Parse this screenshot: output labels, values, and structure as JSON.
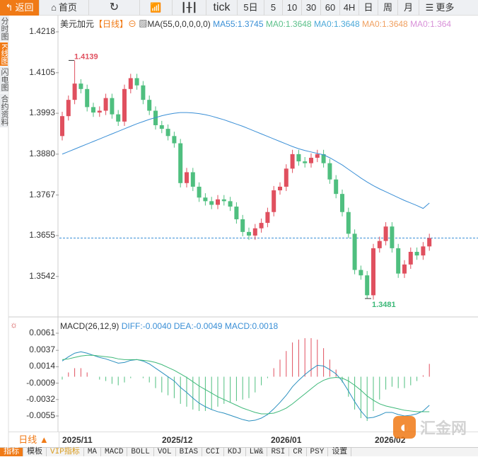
{
  "toolbar": {
    "back": "返回",
    "home": "首页",
    "items": [
      "tick",
      "5日",
      "5",
      "10",
      "30",
      "60",
      "4H",
      "日",
      "周",
      "月"
    ],
    "more": "更多"
  },
  "side_tabs": [
    "分时图",
    "K线图",
    "闪电图",
    "合约资料"
  ],
  "legend": {
    "symbol": "美元加元",
    "period": "【日线】",
    "ma_label": "MA(55,0,0,0,0,0)",
    "ma55": "MA55:1.3745",
    "ma0a": "MA0:1.3648",
    "ma0b": "MA0:1.3648",
    "ma0c": "MA0:1.3648",
    "ma0d": "MA0:1.364"
  },
  "macd_legend": {
    "label": "MACD(26,12,9)",
    "diff": "DIFF:-0.0040",
    "dea": "DEA:-0.0049",
    "macd": "MACD:0.0018"
  },
  "period_select": "日线 ▲",
  "bottom_tabs": [
    "指标",
    "模板",
    "VIP指标",
    "MA",
    "MACD",
    "BOLL",
    "VOL",
    "BIAS",
    "CCI",
    "KDJ",
    "LW&",
    "RSI",
    "CR",
    "PSY",
    "设置"
  ],
  "logo": "汇金网",
  "colors": {
    "up": "#e0505f",
    "down": "#4fbf7f",
    "ma55": "#3a8fd6",
    "diff": "#2a8fbf",
    "dea": "#3cb878",
    "accent": "#f07a16"
  },
  "chart_data": {
    "type": "candlestick",
    "price_ticks": [
      "1.4218",
      "1.4105",
      "1.3993",
      "1.3880",
      "1.3767",
      "1.3655",
      "1.3542"
    ],
    "price_range": [
      1.3455,
      1.4245
    ],
    "last_price": 1.3648,
    "max_label": "1.4139",
    "min_label": "1.3481",
    "date_labels": [
      "2025/11",
      "2025/12",
      "2026/01",
      "2026/02"
    ],
    "closes": [
      1.3985,
      1.403,
      1.4075,
      1.406,
      1.401,
      1.3995,
      1.4,
      1.4035,
      1.399,
      1.397,
      1.406,
      1.409,
      1.407,
      1.403,
      1.4,
      1.396,
      1.395,
      1.393,
      1.391,
      1.38,
      1.383,
      1.379,
      1.376,
      1.375,
      1.374,
      1.3755,
      1.375,
      1.3735,
      1.37,
      1.3665,
      1.3655,
      1.3675,
      1.369,
      1.372,
      1.378,
      1.379,
      1.384,
      1.388,
      1.386,
      1.3855,
      1.387,
      1.388,
      1.3855,
      1.381,
      1.377,
      1.372,
      1.366,
      1.356,
      1.3545,
      1.349,
      1.362,
      1.364,
      1.368,
      1.362,
      1.355,
      1.3575,
      1.361,
      1.36,
      1.3625,
      1.3648
    ],
    "first_open": 1.393,
    "highs_special": {
      "2": 1.4139,
      "49": 1.3481
    },
    "ma55": [
      1.388,
      1.3887,
      1.3894,
      1.3901,
      1.3908,
      1.3915,
      1.3922,
      1.3929,
      1.3936,
      1.3943,
      1.395,
      1.3957,
      1.3964,
      1.397,
      1.3976,
      1.3981,
      1.3986,
      1.399,
      1.3993,
      1.3995,
      1.3995,
      1.3994,
      1.3992,
      1.3989,
      1.3985,
      1.398,
      1.3975,
      1.3969,
      1.3963,
      1.3957,
      1.395,
      1.3943,
      1.3936,
      1.3929,
      1.3922,
      1.3915,
      1.3908,
      1.3901,
      1.3895,
      1.389,
      1.3886,
      1.3882,
      1.3878,
      1.387,
      1.386,
      1.385,
      1.3838,
      1.3826,
      1.3814,
      1.3803,
      1.3793,
      1.3784,
      1.3776,
      1.3768,
      1.376,
      1.3752,
      1.3745,
      1.3738,
      1.373,
      1.3745
    ],
    "macd_ticks": [
      "0.0061",
      "0.0037",
      "0.0014",
      "-0.0009",
      "-0.0032",
      "-0.0055"
    ],
    "macd_range": [
      -0.0068,
      0.0066
    ],
    "diff": [
      0.0022,
      0.0028,
      0.0033,
      0.0035,
      0.0033,
      0.003,
      0.0027,
      0.0025,
      0.0022,
      0.0019,
      0.002,
      0.0023,
      0.0024,
      0.0022,
      0.0018,
      0.0012,
      0.0006,
      0.0,
      -0.0006,
      -0.0015,
      -0.0022,
      -0.003,
      -0.0037,
      -0.0042,
      -0.0046,
      -0.0049,
      -0.0051,
      -0.0054,
      -0.0057,
      -0.006,
      -0.0062,
      -0.0061,
      -0.0058,
      -0.0053,
      -0.0045,
      -0.0036,
      -0.0026,
      -0.0014,
      -0.0005,
      0.0003,
      0.001,
      0.0016,
      0.0015,
      0.001,
      0.0004,
      -0.0006,
      -0.002,
      -0.0035,
      -0.0048,
      -0.0058,
      -0.0057,
      -0.0054,
      -0.005,
      -0.005,
      -0.0053,
      -0.0055,
      -0.0054,
      -0.0052,
      -0.0048,
      -0.004
    ],
    "dea": [
      0.0024,
      0.0025,
      0.0027,
      0.0029,
      0.003,
      0.003,
      0.0029,
      0.0028,
      0.0027,
      0.0025,
      0.0024,
      0.0024,
      0.0024,
      0.0023,
      0.0022,
      0.002,
      0.0017,
      0.0013,
      0.0009,
      0.0004,
      -0.0001,
      -0.0007,
      -0.0013,
      -0.0018,
      -0.0023,
      -0.0028,
      -0.0032,
      -0.0036,
      -0.004,
      -0.0044,
      -0.0047,
      -0.005,
      -0.0052,
      -0.0052,
      -0.0051,
      -0.0048,
      -0.0044,
      -0.0038,
      -0.0031,
      -0.0024,
      -0.0017,
      -0.001,
      -0.0005,
      -0.0002,
      -0.0001,
      -0.0002,
      -0.0006,
      -0.0012,
      -0.0019,
      -0.0027,
      -0.0033,
      -0.0038,
      -0.0041,
      -0.0043,
      -0.0045,
      -0.0047,
      -0.0048,
      -0.0049,
      -0.0049,
      -0.0049
    ]
  }
}
